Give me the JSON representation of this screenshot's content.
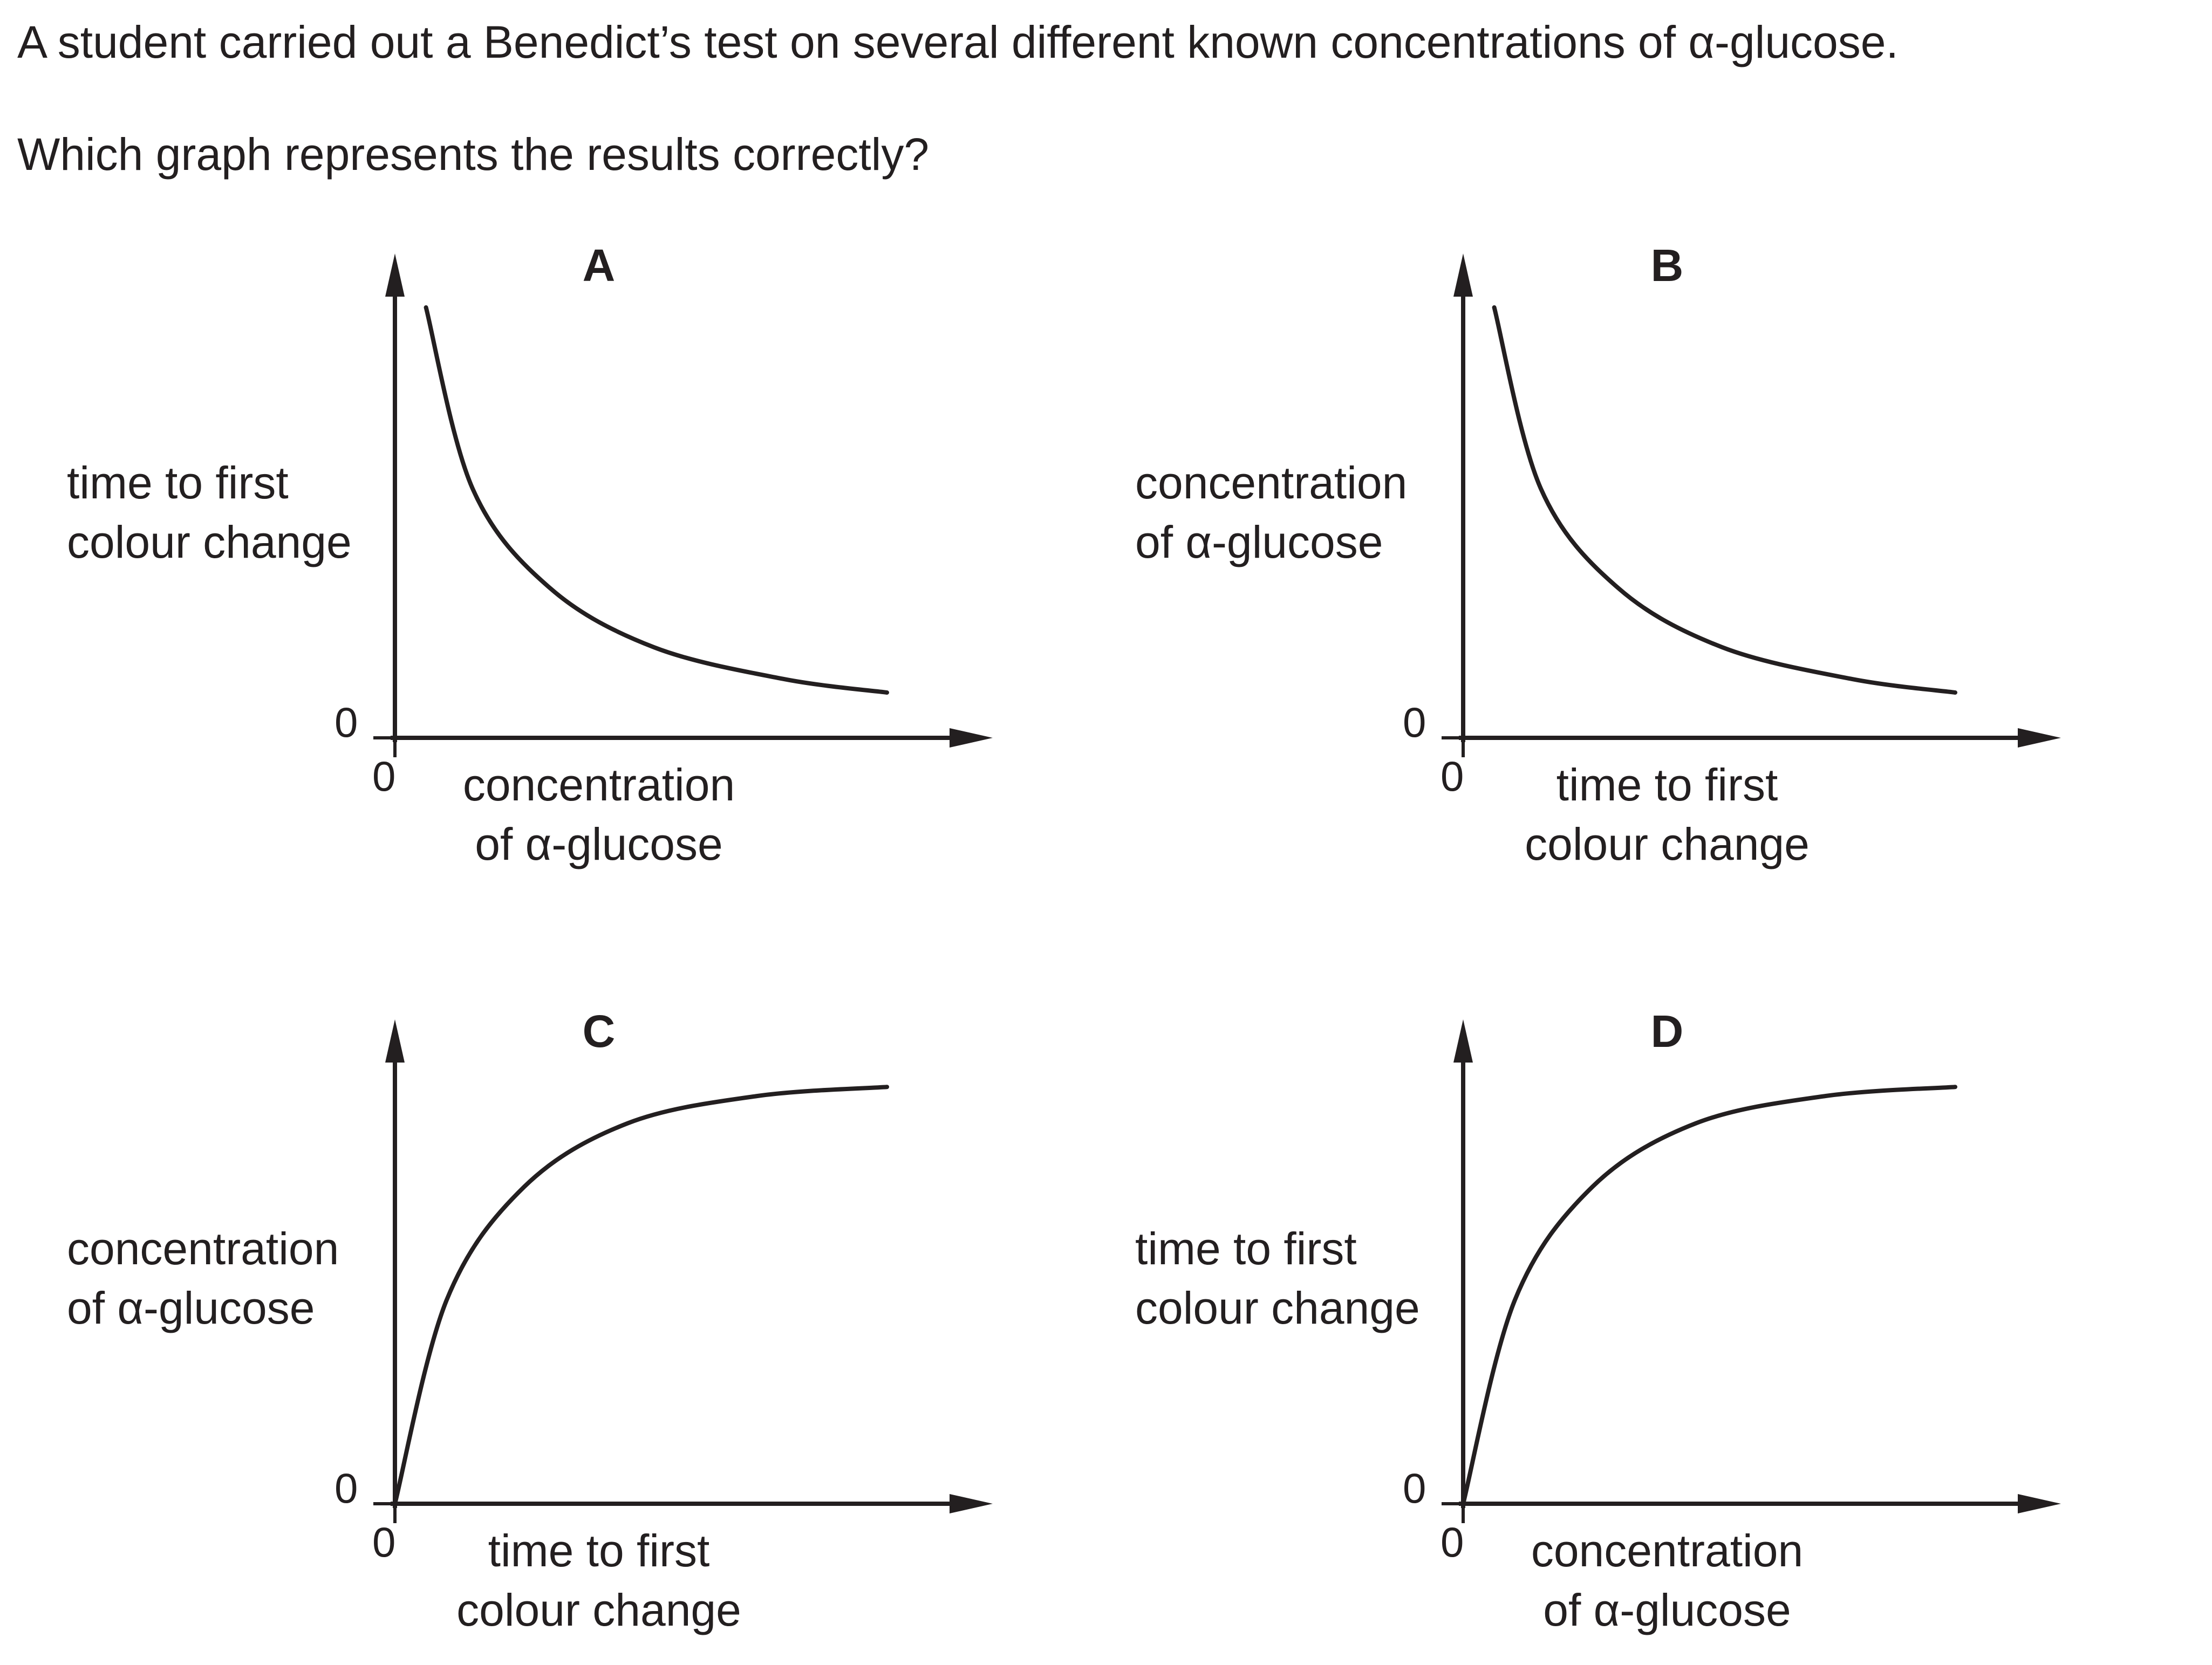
{
  "question": {
    "line1": "A student carried out a Benedict’s test on several different known concentrations of α-glucose.",
    "line2": "Which graph represents the results correctly?"
  },
  "chart_data": [
    {
      "type": "line",
      "title": "A",
      "ylabel_lines": [
        "time to first",
        "colour change"
      ],
      "xlabel_lines": [
        "concentration",
        "of α-glucose"
      ],
      "y_origin_label": "0",
      "x_origin_label": "0",
      "curve_shape": "decreasing",
      "series": [
        {
          "x": [
            0.06,
            0.15,
            0.3,
            0.5,
            0.75,
            0.95
          ],
          "y": [
            0.95,
            0.55,
            0.33,
            0.2,
            0.13,
            0.1
          ]
        }
      ]
    },
    {
      "type": "line",
      "title": "B",
      "ylabel_lines": [
        "concentration",
        "of α-glucose"
      ],
      "xlabel_lines": [
        "time to first",
        "colour change"
      ],
      "y_origin_label": "0",
      "x_origin_label": "0",
      "curve_shape": "decreasing",
      "series": [
        {
          "x": [
            0.06,
            0.15,
            0.3,
            0.5,
            0.75,
            0.95
          ],
          "y": [
            0.95,
            0.55,
            0.33,
            0.2,
            0.13,
            0.1
          ]
        }
      ]
    },
    {
      "type": "line",
      "title": "C",
      "ylabel_lines": [
        "concentration",
        "of α-glucose"
      ],
      "xlabel_lines": [
        "time to first",
        "colour change"
      ],
      "y_origin_label": "0",
      "x_origin_label": "0",
      "curve_shape": "increasing",
      "series": [
        {
          "x": [
            0,
            0.1,
            0.25,
            0.45,
            0.7,
            0.95
          ],
          "y": [
            0,
            0.45,
            0.7,
            0.84,
            0.9,
            0.92
          ]
        }
      ]
    },
    {
      "type": "line",
      "title": "D",
      "ylabel_lines": [
        "time to first",
        "colour change"
      ],
      "xlabel_lines": [
        "concentration",
        "of α-glucose"
      ],
      "y_origin_label": "0",
      "x_origin_label": "0",
      "curve_shape": "increasing",
      "series": [
        {
          "x": [
            0,
            0.1,
            0.25,
            0.45,
            0.7,
            0.95
          ],
          "y": [
            0,
            0.45,
            0.7,
            0.84,
            0.9,
            0.92
          ]
        }
      ]
    }
  ]
}
